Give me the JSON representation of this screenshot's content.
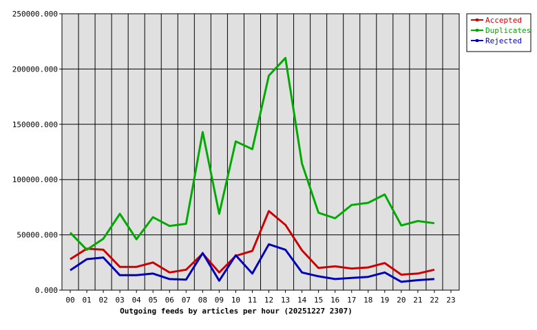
{
  "chart_data": {
    "type": "line",
    "title": "",
    "xlabel": "Outgoing feeds by articles per hour (20251227 2307)",
    "ylabel": "",
    "categories": [
      "00",
      "01",
      "02",
      "03",
      "04",
      "05",
      "06",
      "07",
      "08",
      "09",
      "10",
      "11",
      "12",
      "13",
      "14",
      "15",
      "16",
      "17",
      "18",
      "19",
      "20",
      "21",
      "22",
      "23"
    ],
    "yticks": [
      "0.000",
      "50000.000",
      "100000.000",
      "150000.000",
      "200000.000",
      "250000.000"
    ],
    "ylim": [
      0,
      250000
    ],
    "grid": true,
    "legend_position": "top-right",
    "background_color": "#e0e0e0",
    "series": [
      {
        "name": "Accepted",
        "color": "#cc0000",
        "values": [
          28000,
          37500,
          36500,
          21000,
          21000,
          25000,
          16000,
          18500,
          33000,
          16000,
          31000,
          35500,
          71500,
          59000,
          36000,
          20000,
          21500,
          19500,
          20500,
          24500,
          14000,
          15000,
          18500,
          null
        ]
      },
      {
        "name": "Duplicates",
        "color": "#00aa00",
        "values": [
          52000,
          36500,
          46500,
          69000,
          46000,
          66000,
          58000,
          60000,
          143000,
          69000,
          134500,
          127500,
          194000,
          210000,
          114500,
          70000,
          65000,
          77000,
          79000,
          86500,
          58500,
          62500,
          60500,
          null
        ]
      },
      {
        "name": "Rejected",
        "color": "#0000bb",
        "values": [
          18000,
          28000,
          29500,
          13500,
          13500,
          15000,
          10000,
          9500,
          33500,
          8500,
          31500,
          15000,
          41500,
          36500,
          16000,
          12500,
          10000,
          11000,
          12000,
          16000,
          7500,
          9000,
          10000,
          null
        ]
      }
    ]
  }
}
